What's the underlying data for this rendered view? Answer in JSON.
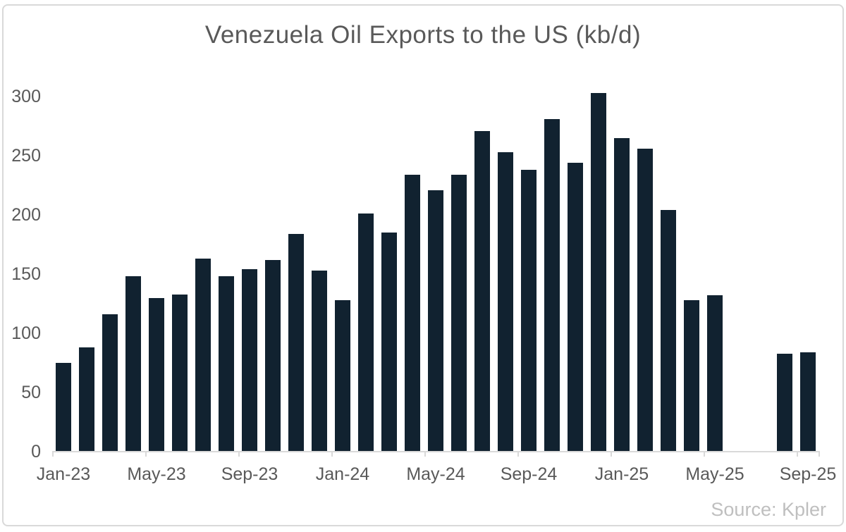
{
  "title": "Venezuela Oil Exports to the US (kb/d)",
  "source": "Source: Kpler",
  "colors": {
    "bar": "#112230",
    "axis": "#d9d9d9",
    "labels": "#595959",
    "source": "#bfbfbf",
    "border": "#d9d9d9",
    "background": "#ffffff"
  },
  "chart_data": {
    "type": "bar",
    "title": "Venezuela Oil Exports to the US (kb/d)",
    "xlabel": "",
    "ylabel": "",
    "categories": [
      "Jan-23",
      "Feb-23",
      "Mar-23",
      "Apr-23",
      "May-23",
      "Jun-23",
      "Jul-23",
      "Aug-23",
      "Sep-23",
      "Oct-23",
      "Nov-23",
      "Dec-23",
      "Jan-24",
      "Feb-24",
      "Mar-24",
      "Apr-24",
      "May-24",
      "Jun-24",
      "Jul-24",
      "Aug-24",
      "Sep-24",
      "Oct-24",
      "Nov-24",
      "Dec-24",
      "Jan-25",
      "Feb-25",
      "Mar-25",
      "Apr-25",
      "May-25",
      "Jun-25",
      "Jul-25",
      "Aug-25",
      "Sep-25"
    ],
    "values": [
      75,
      88,
      116,
      148,
      130,
      133,
      163,
      148,
      154,
      162,
      184,
      153,
      128,
      201,
      185,
      234,
      221,
      234,
      271,
      253,
      238,
      281,
      244,
      303,
      265,
      256,
      204,
      128,
      132,
      null,
      null,
      83,
      84
    ],
    "xtick_labels": [
      "Jan-23",
      "May-23",
      "Sep-23",
      "Jan-24",
      "May-24",
      "Sep-24",
      "Jan-25",
      "May-25",
      "Sep-25"
    ],
    "xtick_indices": [
      0,
      4,
      8,
      12,
      16,
      20,
      24,
      28,
      32
    ],
    "ytick_values": [
      0,
      50,
      100,
      150,
      200,
      250,
      300
    ],
    "ylim": [
      0,
      320
    ],
    "grid": "off",
    "legend": "none"
  }
}
